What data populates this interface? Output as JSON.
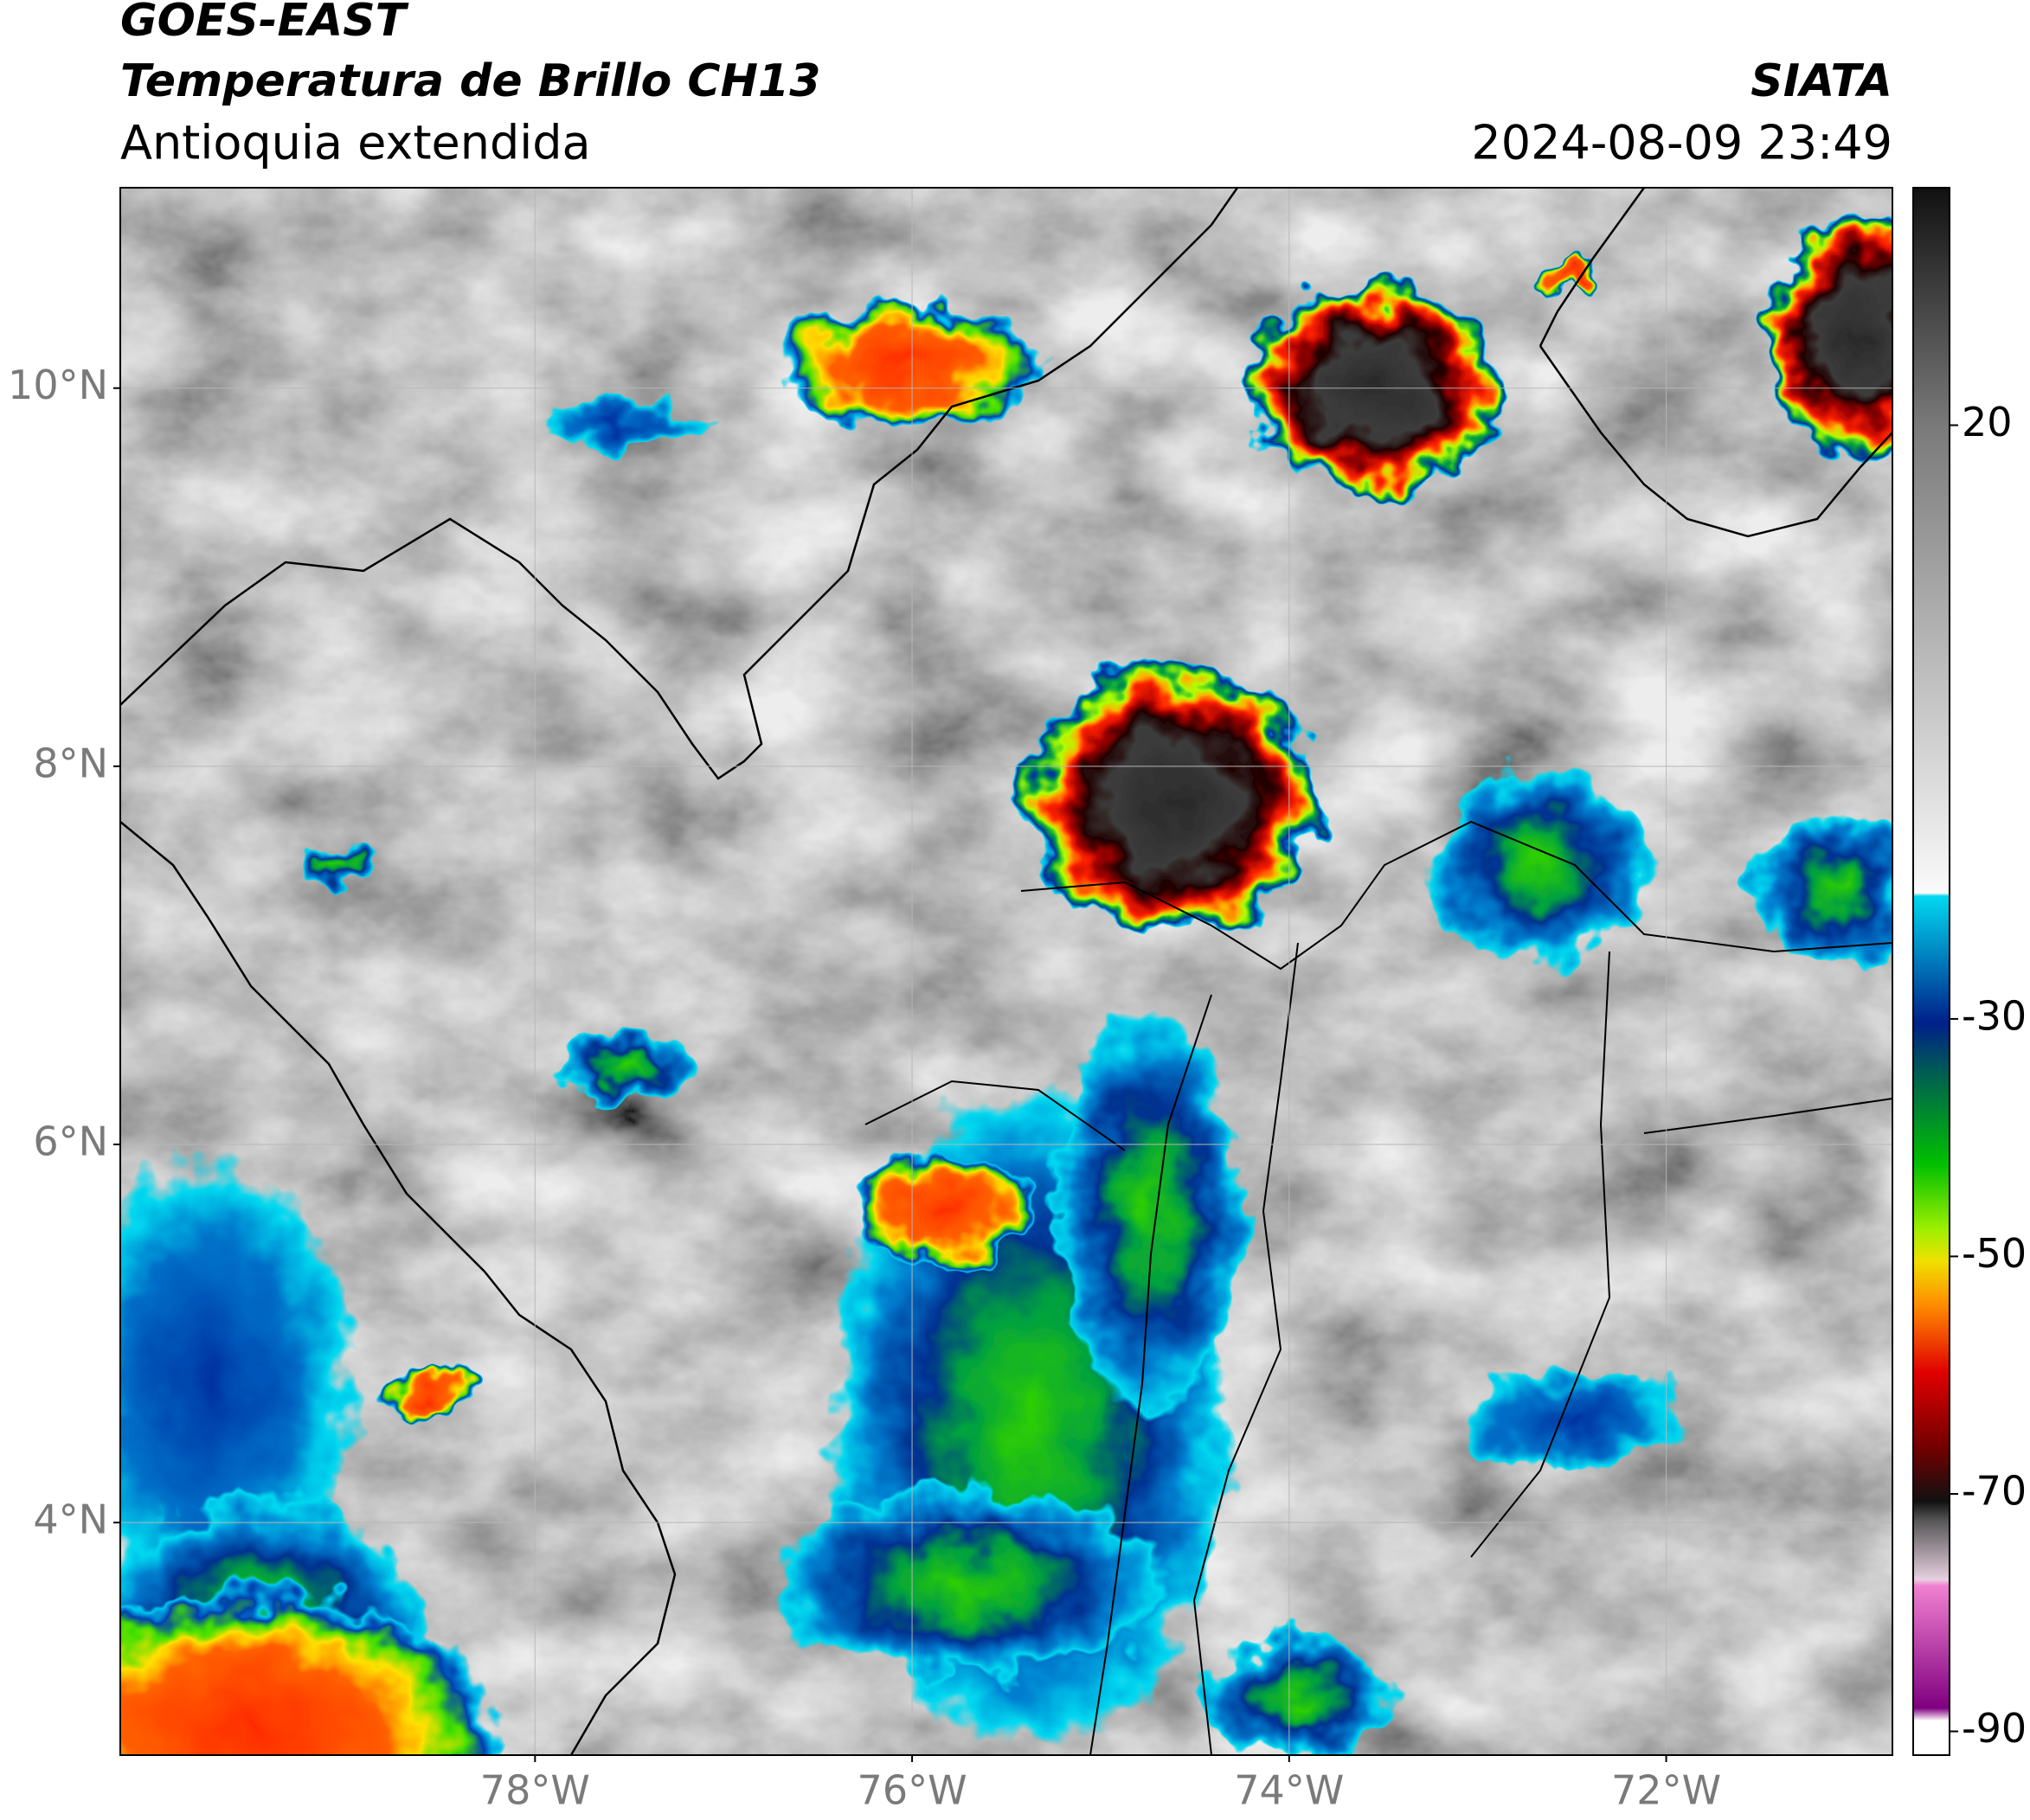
{
  "chart_data": {
    "type": "map",
    "title": "GOES-EAST",
    "subtitle": "Temperatura de Brillo CH13",
    "region": "Antioquia extendida",
    "source": "SIATA",
    "timestamp": "2024-08-09 23:49",
    "xlim": [
      -80.2,
      -70.8
    ],
    "ylim": [
      2.77,
      11.06
    ],
    "xticks": [
      {
        "value": -78,
        "label": "78°W"
      },
      {
        "value": -76,
        "label": "76°W"
      },
      {
        "value": -74,
        "label": "74°W"
      },
      {
        "value": -72,
        "label": "72°W"
      }
    ],
    "yticks": [
      {
        "value": 10,
        "label": "10°N"
      },
      {
        "value": 8,
        "label": "8°N"
      },
      {
        "value": 6,
        "label": "6°N"
      },
      {
        "value": 4,
        "label": "4°N"
      }
    ],
    "grid": true,
    "colorbar": {
      "lim": [
        -92,
        40
      ],
      "ticks": [
        20,
        -30,
        -50,
        -70,
        -90
      ]
    }
  }
}
